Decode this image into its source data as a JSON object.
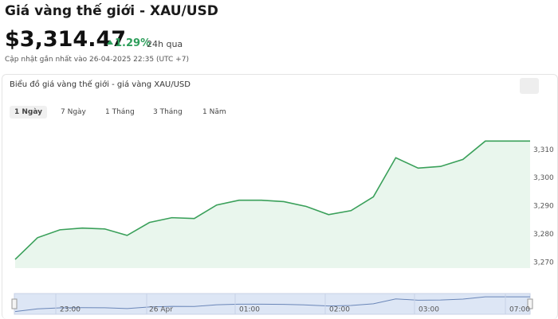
{
  "header": {
    "title": "Giá vàng thế giới - XAU/USD",
    "price": "$3,314.47",
    "change": "1.29%",
    "period": "24h qua",
    "updated": "Cập nhật gần nhất vào 26-04-2025 22:35 (UTC +7)"
  },
  "card": {
    "title": "Biểu đồ giá vàng thế giới - giá vàng XAU/USD",
    "tabs": [
      "1 Ngày",
      "7 Ngày",
      "1 Tháng",
      "3 Tháng",
      "1 Năm"
    ]
  },
  "chart_data": {
    "type": "area",
    "color": "#3aa05a",
    "fill": "#e9f6ed",
    "values": [
      3271.1,
      3278.8,
      3281.6,
      3282.2,
      3281.9,
      3279.6,
      3284.2,
      3285.9,
      3285.6,
      3290.4,
      3292.1,
      3292.1,
      3291.6,
      3289.9,
      3287.0,
      3288.4,
      3293.3,
      3307.2,
      3303.5,
      3304.1,
      3306.6,
      3313.1,
      3313.1,
      3313.1
    ],
    "ylim": [
      3268,
      3318
    ],
    "yticks": [
      {
        "value": 3270,
        "label": "3,270"
      },
      {
        "value": 3280,
        "label": "3,280"
      },
      {
        "value": 3290,
        "label": "3,290"
      },
      {
        "value": 3300,
        "label": "3,300"
      },
      {
        "value": 3310,
        "label": "3,310"
      }
    ],
    "grid": false,
    "navigator_labels": [
      "23:00",
      "26 Apr",
      "01:00",
      "02:00",
      "03:00",
      "07:00"
    ]
  }
}
